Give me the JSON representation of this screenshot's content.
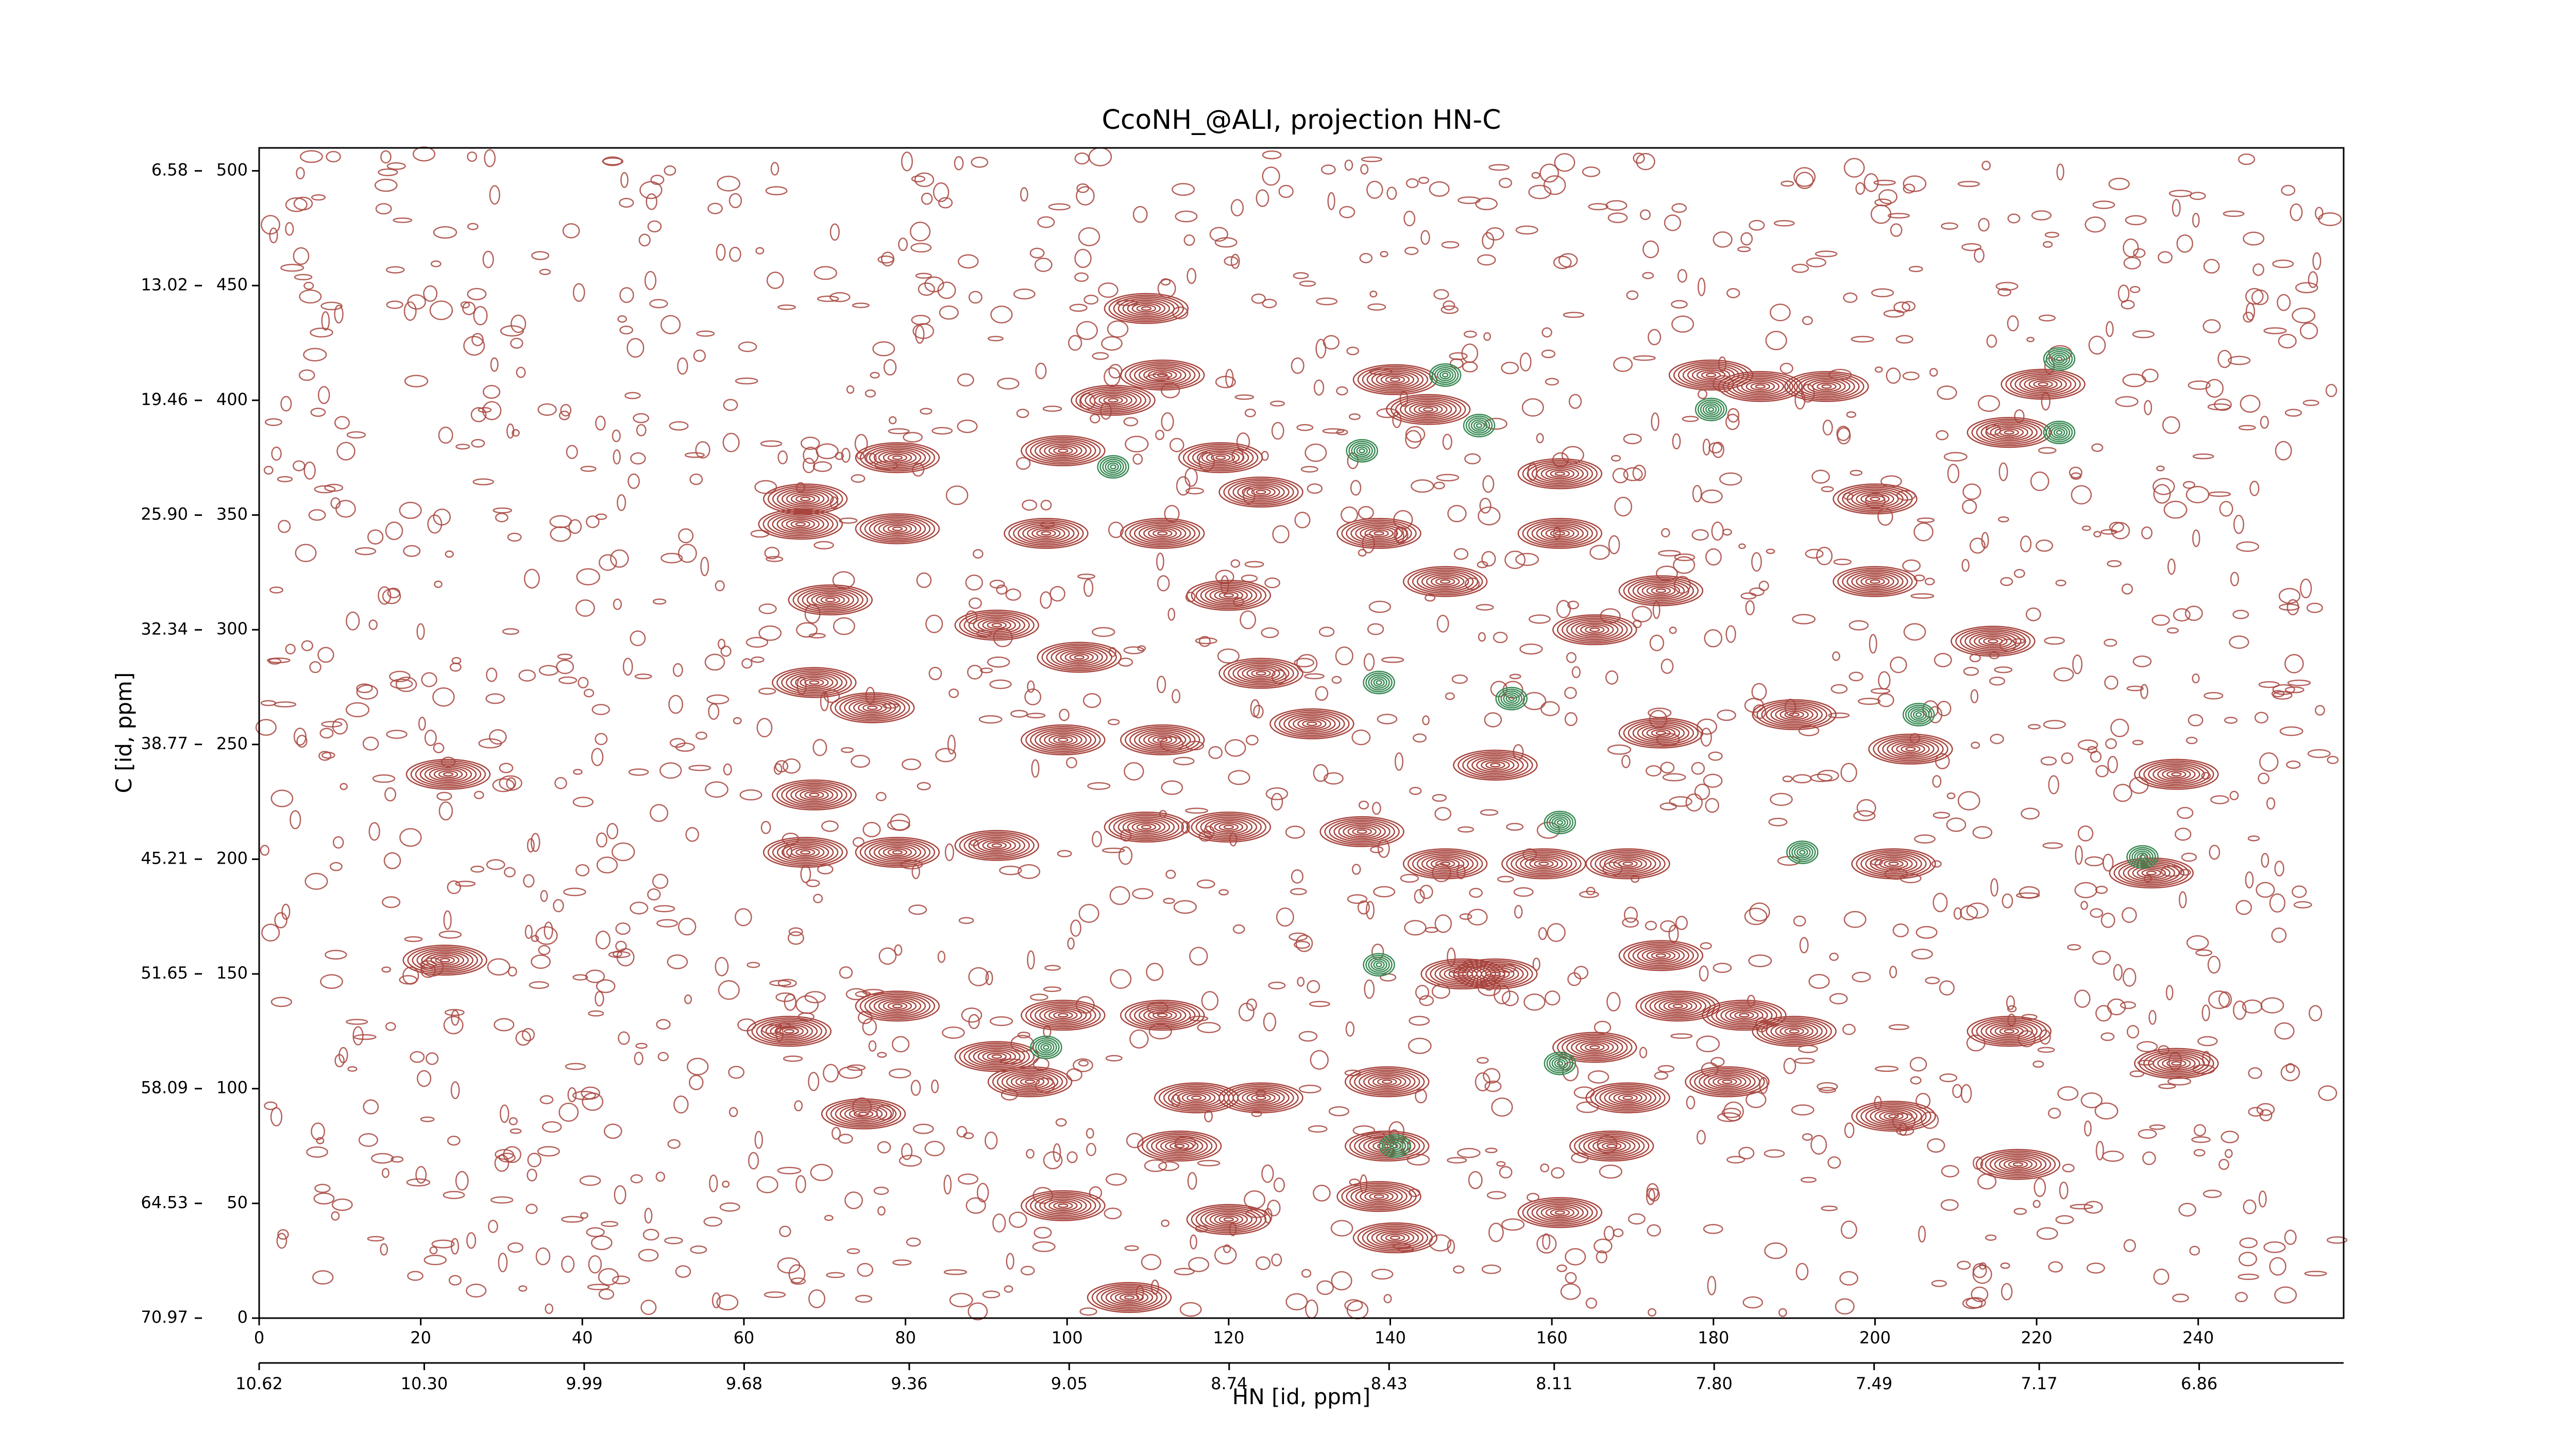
{
  "chart_data": {
    "type": "contour",
    "title": "CcoNH_@ALI, projection HN-C",
    "xlabel": "HN [id, ppm]",
    "ylabel": "C [id, ppm]",
    "xlim": [
      0,
      258
    ],
    "xticks": [
      0,
      20,
      40,
      60,
      80,
      100,
      120,
      140,
      160,
      180,
      200,
      220,
      240
    ],
    "x2lim": [
      10.62,
      6.58
    ],
    "x2ticks": [
      10.62,
      {
        "value": 10.3,
        "label": "10.30"
      },
      9.99,
      9.68,
      9.36,
      9.05,
      8.74,
      8.43,
      8.11,
      {
        "value": 7.8,
        "label": "7.80"
      },
      7.49,
      7.17,
      6.86
    ],
    "ylim": [
      0,
      510
    ],
    "yticks": [
      0,
      50,
      100,
      150,
      200,
      250,
      300,
      350,
      400,
      450,
      500
    ],
    "y2lim": [
      70.97,
      5.29
    ],
    "y2ticks": [
      70.97,
      64.53,
      58.09,
      51.65,
      45.21,
      38.77,
      32.34,
      {
        "value": 25.9,
        "label": "25.90"
      },
      19.46,
      13.02,
      6.58
    ],
    "series": [
      {
        "name": "positive",
        "color": "#a8453e",
        "x": [
          23.4,
          23,
          67.6,
          67,
          79,
          70.7,
          68.7,
          75.9,
          68.7,
          67.6,
          79,
          79,
          91.3,
          91.3,
          74.8,
          65.6,
          79,
          91.3,
          99.5,
          97.4,
          101.5,
          99.5,
          111.8,
          111.8,
          119,
          124,
          109.8,
          105.7,
          111.8,
          120,
          124,
          130.3,
          120,
          109.8,
          140.6,
          144.7,
          146.8,
          138.6,
          136.5,
          146.8,
          159,
          169.4,
          161,
          161,
          173.5,
          165.3,
          173.5,
          153,
          179.7,
          185.8,
          194,
          200,
          200,
          190,
          204.4,
          220.8,
          216.6,
          234.2,
          237.3,
          237.3,
          216.6,
          217.7,
          202.3,
          190,
          202.3,
          214.6,
          99.5,
          95.4,
          111.8,
          116,
          124,
          139.6,
          139.6,
          138.6,
          140.6,
          165.3,
          167.4,
          169.4,
          181.7,
          183.8,
          99.5,
          107.7,
          120,
          113.9,
          153,
          161,
          173.5,
          149,
          175.6
        ],
        "values": [
          237,
          156,
          357,
          346,
          344,
          313,
          277,
          266,
          228,
          203,
          203,
          375,
          302,
          206,
          89,
          125,
          136,
          114,
          378,
          342,
          288,
          252,
          252,
          342,
          375,
          360,
          440,
          400,
          411,
          315,
          281,
          259,
          214,
          214,
          409,
          396,
          321,
          342,
          212,
          198,
          198,
          198,
          368,
          342,
          317,
          300,
          255,
          241,
          411,
          406,
          406,
          357,
          321,
          263,
          248,
          407,
          386,
          194,
          237,
          111,
          125,
          67,
          88,
          125,
          198,
          295,
          132,
          103,
          132,
          96,
          96,
          103,
          75,
          53,
          35,
          118,
          75,
          96,
          103,
          132,
          49,
          9,
          43,
          75,
          150,
          46,
          158,
          150,
          136
        ]
      },
      {
        "name": "negative",
        "color": "#3a8a55",
        "x": [
          146.8,
          151,
          136.5,
          105.7,
          155,
          138.6,
          161,
          179.7,
          222.8,
          233.1,
          191,
          140.6,
          161,
          138.6,
          97.4,
          205.4,
          222.8
        ],
        "values": [
          411,
          389,
          378,
          371,
          270,
          277,
          216,
          396,
          418,
          201,
          203,
          75,
          111,
          154,
          118,
          263,
          386
        ]
      }
    ]
  }
}
